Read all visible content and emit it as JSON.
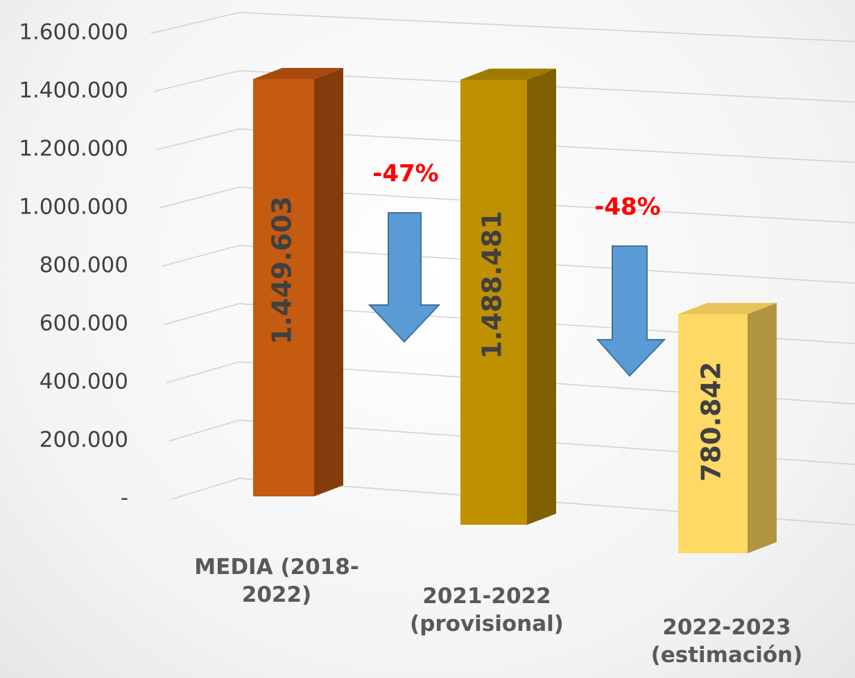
{
  "chart_data": {
    "type": "bar3d",
    "categories": [
      "MEDIA (2018-2022)",
      "2021-2022 (provisional)",
      "2022-2023 (estimación)"
    ],
    "values": [
      1449603,
      1488481,
      780842
    ],
    "value_labels": [
      "1.449.603",
      "1.488.481",
      "780.842"
    ],
    "colors": [
      "#c55a11",
      "#bf9000",
      "#ffd966"
    ],
    "ylim": [
      0,
      1600000
    ],
    "yticks": [
      {
        "value": 0,
        "label": "-"
      },
      {
        "value": 200000,
        "label": "200.000"
      },
      {
        "value": 400000,
        "label": "400.000"
      },
      {
        "value": 600000,
        "label": "600.000"
      },
      {
        "value": 800000,
        "label": "800.000"
      },
      {
        "value": 1000000,
        "label": "1.000.000"
      },
      {
        "value": 1200000,
        "label": "1.200.000"
      },
      {
        "value": 1400000,
        "label": "1.400.000"
      },
      {
        "value": 1600000,
        "label": "1.600.000"
      }
    ],
    "grid": true,
    "annotations": [
      "-47%",
      "-48%"
    ]
  }
}
